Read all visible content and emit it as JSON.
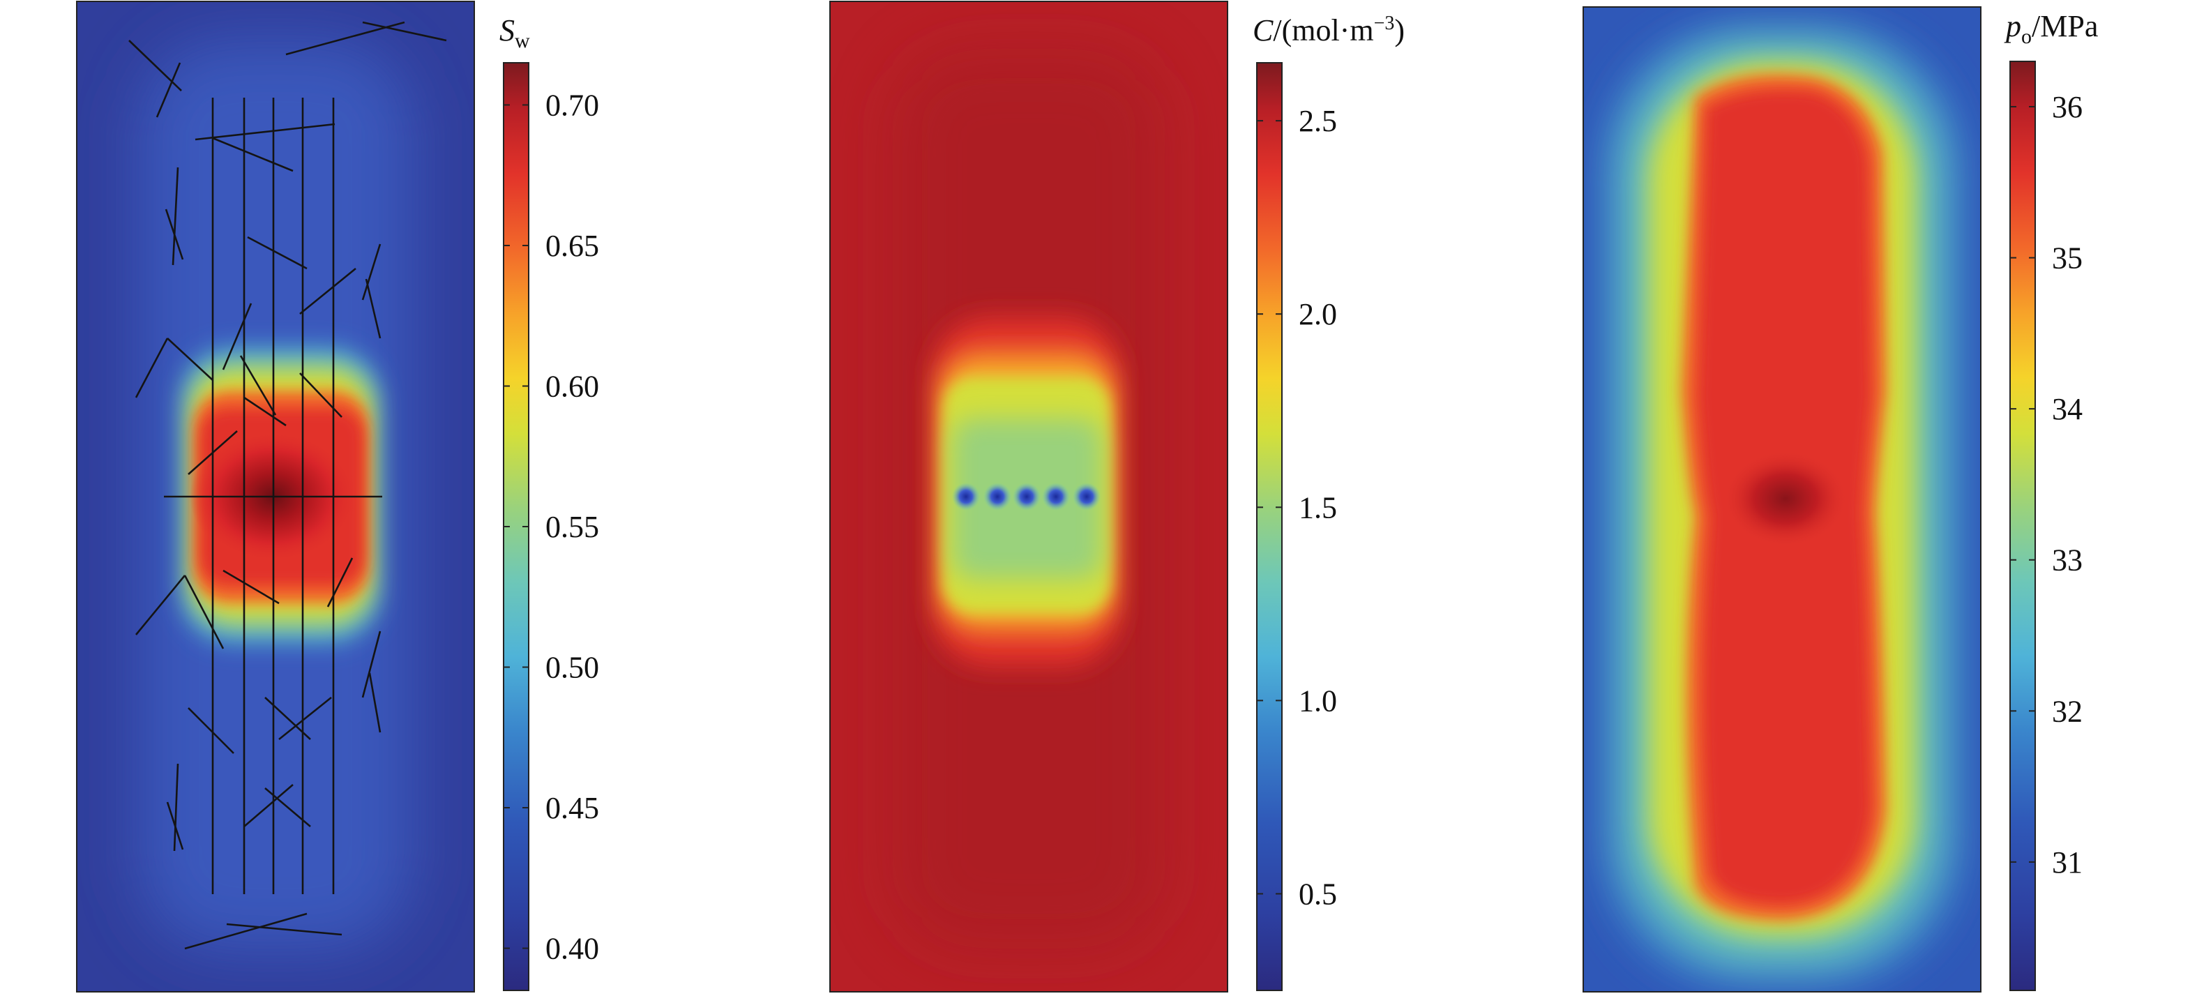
{
  "chart_data": [
    {
      "type": "heatmap",
      "title": "",
      "colorbar": {
        "label": "S",
        "label_sub": "w",
        "label_rest": "",
        "ticks": [
          0.4,
          0.45,
          0.5,
          0.55,
          0.6,
          0.65,
          0.7
        ],
        "tick_labels": [
          "0.40",
          "0.45",
          "0.50",
          "0.55",
          "0.60",
          "0.65",
          "0.70"
        ],
        "range": [
          0.385,
          0.715
        ]
      },
      "field": {
        "description_values": {
          "background": 0.41,
          "center_max": 0.71,
          "injection_zone": 0.66
        }
      }
    },
    {
      "type": "heatmap",
      "title": "",
      "colorbar": {
        "label": "C",
        "label_sub": "",
        "label_rest": "/(mol·m",
        "label_sup": "−3",
        "label_close": ")",
        "ticks": [
          0.5,
          1.0,
          1.5,
          2.0,
          2.5
        ],
        "tick_labels": [
          "0.5",
          "1.0",
          "1.5",
          "2.0",
          "2.5"
        ],
        "range": [
          0.25,
          2.65
        ]
      },
      "field": {
        "description_values": {
          "background": 2.62,
          "injection_zone": 1.75,
          "well_points": 0.4
        }
      }
    },
    {
      "type": "heatmap",
      "title": "",
      "colorbar": {
        "label": "p",
        "label_sub": "o",
        "label_rest": "/MPa",
        "ticks": [
          31,
          32,
          33,
          34,
          35,
          36
        ],
        "tick_labels": [
          "31",
          "32",
          "33",
          "34",
          "35",
          "36"
        ],
        "range": [
          30.15,
          36.3
        ]
      },
      "field": {
        "description_values": {
          "background": 31.0,
          "stimulated_zone": 35.5,
          "center_max": 36.2
        }
      }
    }
  ],
  "colormap": [
    "#2b2a7f",
    "#2d3fa0",
    "#2f58b8",
    "#3a86cc",
    "#4fb3d8",
    "#6dc7b8",
    "#9ad27c",
    "#d4df3a",
    "#f5d32a",
    "#f7a229",
    "#f2682a",
    "#e2332a",
    "#b81f26",
    "#7d1a1f"
  ]
}
